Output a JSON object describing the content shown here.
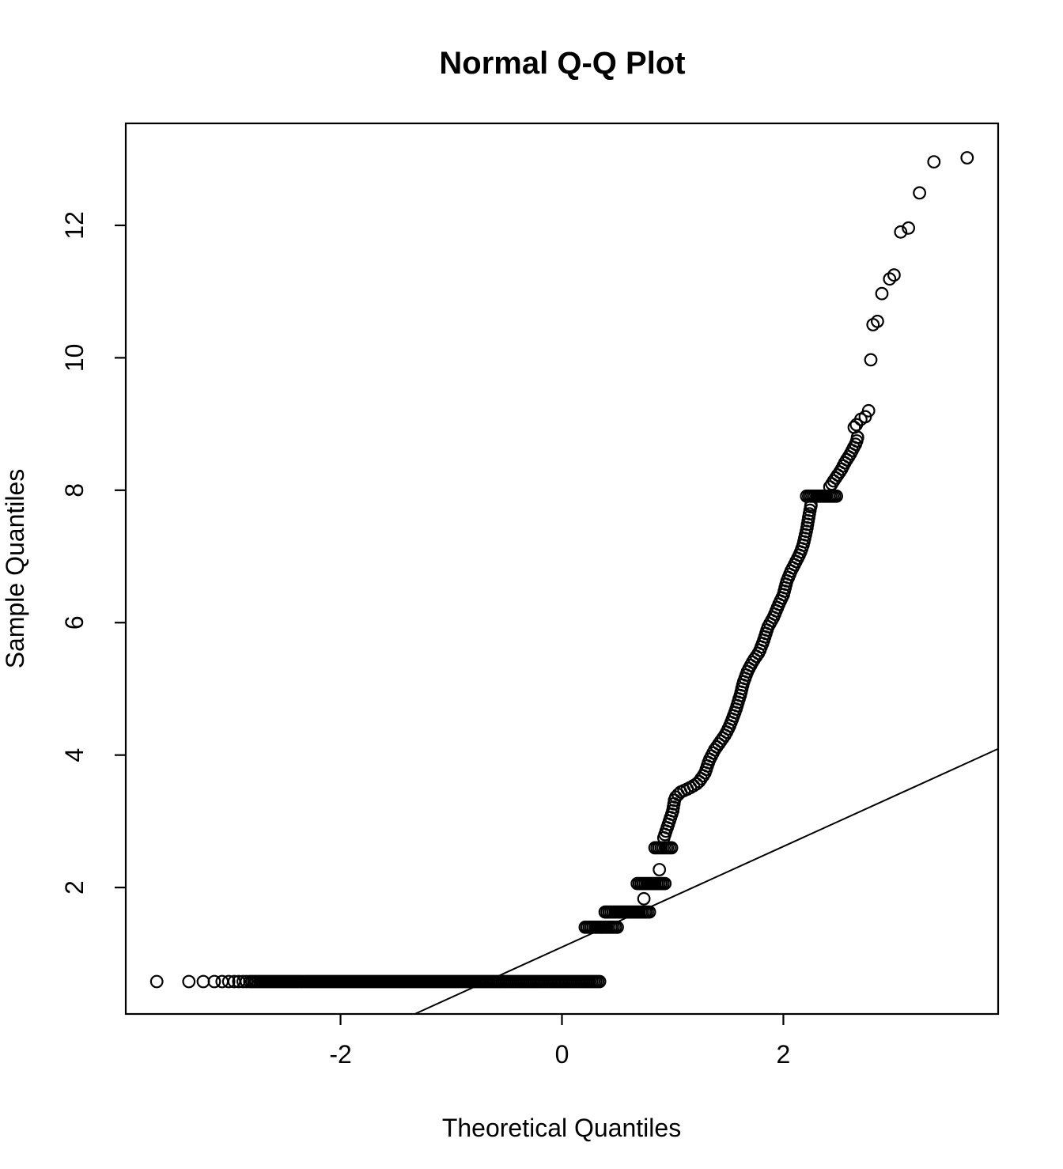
{
  "title": "Normal Q-Q Plot",
  "chart_data": {
    "type": "scatter",
    "title": "Normal Q-Q Plot",
    "xlabel": "Theoretical Quantiles",
    "ylabel": "Sample Quantiles",
    "xlim": [
      -3.94,
      3.94
    ],
    "ylim": [
      0.09,
      13.54
    ],
    "x_ticks": [
      -2,
      0,
      2
    ],
    "y_ticks": [
      2,
      4,
      6,
      8,
      10,
      12
    ],
    "grid": false,
    "legend": "none",
    "marker": "open-circle",
    "colors": {
      "points": "#000000",
      "reference_line": "#000000",
      "background": "#ffffff"
    },
    "reference_line": {
      "slope": 0.76,
      "intercept": 1.1,
      "description": "qqline through data quartiles, ends at y=4.09 at right edge"
    },
    "points": [
      [
        -3.66,
        0.58
      ],
      [
        -3.37,
        0.58
      ],
      [
        -3.24,
        0.58
      ],
      [
        -3.14,
        0.58
      ],
      [
        -3.07,
        0.58
      ],
      [
        -3.01,
        0.58
      ],
      [
        -2.96,
        0.58
      ],
      [
        -2.92,
        0.58
      ],
      [
        -2.88,
        0.58
      ],
      [
        -2.85,
        0.58
      ],
      [
        0.74,
        1.83
      ],
      [
        0.88,
        2.27
      ],
      [
        2.64,
        8.95
      ],
      [
        2.66,
        8.99
      ],
      [
        2.7,
        9.07
      ],
      [
        2.74,
        9.11
      ],
      [
        2.77,
        9.2
      ],
      [
        2.79,
        9.97
      ],
      [
        2.81,
        10.5
      ],
      [
        2.85,
        10.55
      ],
      [
        2.89,
        10.97
      ],
      [
        2.96,
        11.19
      ],
      [
        3.0,
        11.25
      ],
      [
        3.06,
        11.9
      ],
      [
        3.13,
        11.96
      ],
      [
        3.23,
        12.49
      ],
      [
        3.36,
        12.96
      ],
      [
        3.66,
        13.02
      ]
    ],
    "dense_runs": [
      {
        "y": 0.58,
        "x_from": -2.82,
        "x_to": 0.34
      },
      {
        "y": 1.4,
        "x_from": 0.21,
        "x_to": 0.5
      },
      {
        "y": 1.63,
        "x_from": 0.39,
        "x_to": 0.79
      },
      {
        "y": 2.06,
        "x_from": 0.68,
        "x_to": 0.93
      },
      {
        "y": 2.6,
        "x_from": 0.84,
        "x_to": 0.99
      },
      {
        "y": 7.91,
        "x_from": 2.21,
        "x_to": 2.48
      }
    ],
    "chain_paths": [
      {
        "vertices": [
          [
            0.92,
            2.75
          ],
          [
            0.96,
            2.95
          ],
          [
            1.0,
            3.15
          ],
          [
            1.02,
            3.35
          ],
          [
            1.07,
            3.44
          ],
          [
            1.15,
            3.5
          ],
          [
            1.23,
            3.58
          ],
          [
            1.29,
            3.72
          ],
          [
            1.33,
            3.92
          ],
          [
            1.38,
            4.08
          ],
          [
            1.43,
            4.2
          ],
          [
            1.48,
            4.32
          ],
          [
            1.52,
            4.46
          ],
          [
            1.57,
            4.68
          ],
          [
            1.61,
            4.9
          ],
          [
            1.64,
            5.1
          ],
          [
            1.68,
            5.28
          ],
          [
            1.73,
            5.43
          ],
          [
            1.78,
            5.55
          ],
          [
            1.82,
            5.72
          ],
          [
            1.86,
            5.93
          ],
          [
            1.91,
            6.08
          ],
          [
            1.96,
            6.28
          ],
          [
            2.0,
            6.42
          ],
          [
            2.03,
            6.62
          ],
          [
            2.07,
            6.78
          ],
          [
            2.11,
            6.91
          ],
          [
            2.15,
            7.04
          ],
          [
            2.18,
            7.18
          ],
          [
            2.21,
            7.4
          ],
          [
            2.23,
            7.6
          ],
          [
            2.25,
            7.78
          ]
        ]
      },
      {
        "vertices": [
          [
            2.42,
            8.05
          ],
          [
            2.47,
            8.18
          ],
          [
            2.52,
            8.3
          ],
          [
            2.56,
            8.43
          ],
          [
            2.6,
            8.53
          ],
          [
            2.63,
            8.63
          ],
          [
            2.66,
            8.72
          ],
          [
            2.67,
            8.8
          ]
        ]
      }
    ]
  }
}
